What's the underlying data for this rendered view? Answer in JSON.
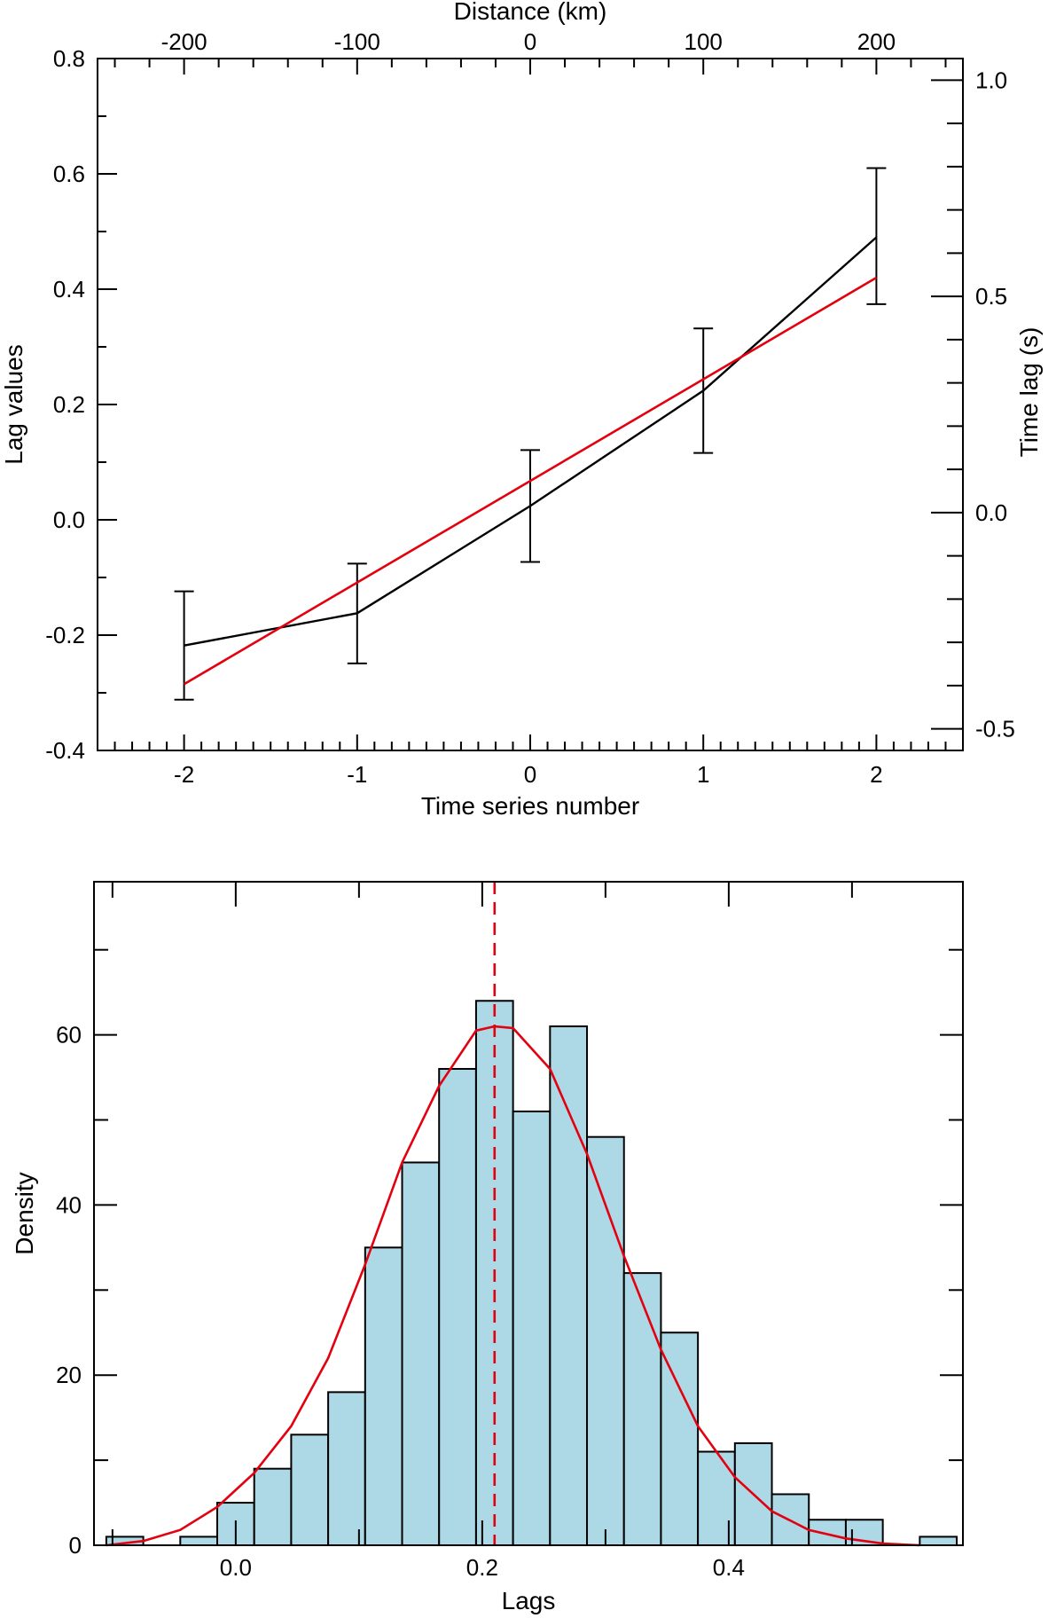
{
  "colors": {
    "axis": "#000000",
    "data_line": "#000000",
    "fit_line": "#e3000f",
    "hist_fill": "#add8e6",
    "hist_edge": "#000000",
    "density_curve": "#e3000f",
    "mean_line": "#e3000f"
  },
  "chart_data": [
    {
      "type": "line",
      "xlabel": "Time series number",
      "ylabel": "Lag values",
      "top_xlabel": "Distance (km)",
      "right_ylabel": "Time lag (s)",
      "xlim": [
        -2.5,
        2.5
      ],
      "ylim": [
        -0.4,
        0.8
      ],
      "top_xlim": [
        -250,
        250
      ],
      "right_ylim": [
        -0.55,
        1.05
      ],
      "x_ticks": [
        -2,
        -1,
        0,
        1,
        2
      ],
      "x_tick_labels": [
        "-2",
        "-1",
        "0",
        "1",
        "2"
      ],
      "y_ticks": [
        -0.4,
        -0.2,
        0.0,
        0.2,
        0.4,
        0.6,
        0.8
      ],
      "y_tick_labels": [
        "-0.4",
        "-0.2",
        "0.0",
        "0.2",
        "0.4",
        "0.6",
        "0.8"
      ],
      "top_ticks": [
        -200,
        -100,
        0,
        100,
        200
      ],
      "top_tick_labels": [
        "-200",
        "-100",
        "0",
        "100",
        "200"
      ],
      "right_ticks": [
        -0.5,
        0.0,
        0.5,
        1.0
      ],
      "right_tick_labels": [
        "-0.5",
        "0.0",
        "0.5",
        "1.0"
      ],
      "series": [
        {
          "name": "Lag values",
          "x": [
            -2,
            -1,
            0,
            1,
            2
          ],
          "y": [
            -0.218,
            -0.162,
            0.024,
            0.224,
            0.49
          ],
          "err_low": [
            -0.312,
            -0.249,
            -0.073,
            0.116,
            0.374
          ],
          "err_high": [
            -0.124,
            -0.076,
            0.121,
            0.332,
            0.61
          ]
        },
        {
          "name": "Linear fit",
          "x": [
            -2,
            2
          ],
          "y": [
            -0.285,
            0.42
          ]
        }
      ]
    },
    {
      "type": "histogram",
      "xlabel": "Lags",
      "ylabel": "Density",
      "xlim": [
        -0.115,
        0.59
      ],
      "ylim": [
        0,
        78
      ],
      "x_ticks": [
        0.0,
        0.2,
        0.4
      ],
      "x_tick_labels": [
        "0.0",
        "0.2",
        "0.4"
      ],
      "y_ticks": [
        0,
        20,
        40,
        60
      ],
      "y_tick_labels": [
        "0",
        "20",
        "40",
        "60"
      ],
      "bins": [
        {
          "left": -0.105,
          "right": -0.075,
          "value": 1
        },
        {
          "left": -0.045,
          "right": -0.015,
          "value": 1
        },
        {
          "left": -0.015,
          "right": 0.015,
          "value": 5
        },
        {
          "left": 0.015,
          "right": 0.045,
          "value": 9
        },
        {
          "left": 0.045,
          "right": 0.075,
          "value": 13
        },
        {
          "left": 0.075,
          "right": 0.105,
          "value": 18
        },
        {
          "left": 0.105,
          "right": 0.135,
          "value": 35
        },
        {
          "left": 0.135,
          "right": 0.165,
          "value": 45
        },
        {
          "left": 0.165,
          "right": 0.195,
          "value": 56
        },
        {
          "left": 0.195,
          "right": 0.225,
          "value": 64
        },
        {
          "left": 0.225,
          "right": 0.255,
          "value": 51
        },
        {
          "left": 0.255,
          "right": 0.285,
          "value": 61
        },
        {
          "left": 0.285,
          "right": 0.315,
          "value": 48
        },
        {
          "left": 0.315,
          "right": 0.345,
          "value": 32
        },
        {
          "left": 0.345,
          "right": 0.375,
          "value": 25
        },
        {
          "left": 0.375,
          "right": 0.405,
          "value": 11
        },
        {
          "left": 0.405,
          "right": 0.435,
          "value": 12
        },
        {
          "left": 0.435,
          "right": 0.465,
          "value": 6
        },
        {
          "left": 0.465,
          "right": 0.495,
          "value": 3
        },
        {
          "left": 0.495,
          "right": 0.525,
          "value": 3
        },
        {
          "left": 0.555,
          "right": 0.585,
          "value": 1
        }
      ],
      "density_curve": {
        "x": [
          -0.105,
          -0.075,
          -0.045,
          -0.015,
          0.015,
          0.045,
          0.075,
          0.105,
          0.135,
          0.165,
          0.195,
          0.21,
          0.225,
          0.255,
          0.285,
          0.315,
          0.345,
          0.375,
          0.405,
          0.435,
          0.465,
          0.495,
          0.525,
          0.555
        ],
        "y": [
          0,
          0.5,
          1.8,
          4.5,
          8.5,
          14,
          22,
          33,
          45,
          54,
          60.5,
          61,
          60.8,
          56,
          46,
          34,
          23,
          14,
          8,
          4,
          1.8,
          0.8,
          0.2,
          0
        ]
      },
      "mean_line_x": 0.21
    }
  ]
}
